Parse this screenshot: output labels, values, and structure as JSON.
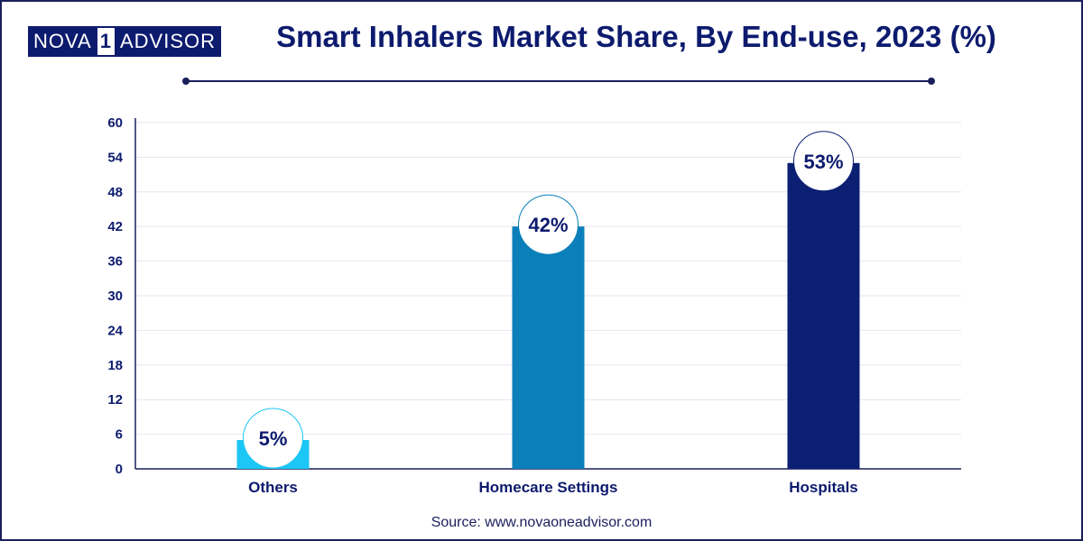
{
  "brand": {
    "left": "NOVA",
    "one": "1",
    "right": "ADVISOR"
  },
  "source": "Source: www.novaoneadvisor.com",
  "colors": {
    "navy": "#0d1b6e",
    "cyan": "#1cc6f5",
    "blue": "#0b7fb9",
    "dark_blue": "#0b1f73",
    "grid": "#e6e6ee"
  },
  "chart_data": {
    "type": "bar",
    "title": "Smart Inhalers Market Share, By End-use, 2023 (%)",
    "xlabel": "",
    "ylabel": "",
    "ylim": [
      0,
      60
    ],
    "yticks": [
      "0",
      "6",
      "12",
      "18",
      "24",
      "30",
      "36",
      "42",
      "48",
      "54",
      "60"
    ],
    "categories": [
      "Others",
      "Homecare Settings",
      "Hospitals"
    ],
    "values": [
      5,
      42,
      53
    ],
    "data_labels": [
      "5%",
      "42%",
      "53%"
    ],
    "bar_colors": [
      "#1cc6f5",
      "#0b7fb9",
      "#0b1f73"
    ],
    "grid": true
  }
}
